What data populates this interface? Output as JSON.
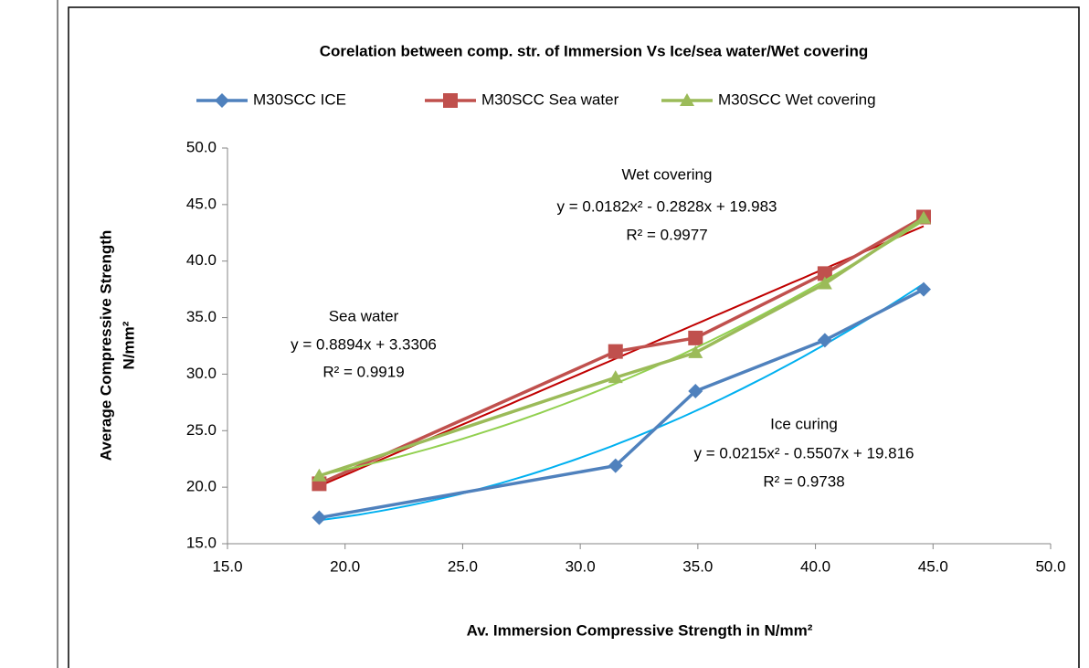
{
  "chart_data": {
    "type": "line",
    "title": "Corelation between comp. str. of Immersion Vs Ice/sea water/Wet covering",
    "x_label": "Av. Immersion Compressive Strength in N/mm²",
    "y_label": [
      "Average Compressive Strength",
      "N/mm²"
    ],
    "xlim": [
      15,
      50
    ],
    "ylim": [
      15,
      50
    ],
    "xticks": [
      {
        "value": 15,
        "label": "15.0"
      },
      {
        "value": 20,
        "label": "20.0"
      },
      {
        "value": 25,
        "label": "25.0"
      },
      {
        "value": 30,
        "label": "30.0"
      },
      {
        "value": 35,
        "label": "35.0"
      },
      {
        "value": 40,
        "label": "40.0"
      },
      {
        "value": 45,
        "label": "45.0"
      },
      {
        "value": 50,
        "label": "50.0"
      }
    ],
    "yticks": [
      {
        "value": 15,
        "label": "15.0"
      },
      {
        "value": 20,
        "label": "20.0"
      },
      {
        "value": 25,
        "label": "25.0"
      },
      {
        "value": 30,
        "label": "30.0"
      },
      {
        "value": 35,
        "label": "35.0"
      },
      {
        "value": 40,
        "label": "40.0"
      },
      {
        "value": 45,
        "label": "45.0"
      },
      {
        "value": 50,
        "label": "50.0"
      }
    ],
    "grid": false,
    "legend": "top",
    "series": [
      {
        "name": "M30SCC ICE",
        "color": "#4f81bd",
        "marker": "diamond",
        "trend_color": "#00b0f0",
        "trend_order": 2,
        "x": [
          18.9,
          31.5,
          34.9,
          40.4,
          44.6
        ],
        "values": [
          17.3,
          21.9,
          28.5,
          33.0,
          37.5
        ]
      },
      {
        "name": "M30SCC Sea water",
        "color": "#c0504d",
        "marker": "square",
        "trend_color": "#c00000",
        "trend_order": 1,
        "x": [
          18.9,
          31.5,
          34.9,
          40.4,
          44.6
        ],
        "values": [
          20.3,
          32.0,
          33.2,
          38.9,
          43.9
        ]
      },
      {
        "name": "M30SCC Wet covering",
        "color": "#9bbb59",
        "marker": "triangle",
        "trend_color": "#92d050",
        "trend_order": 2,
        "x": [
          18.9,
          31.5,
          34.9,
          40.4,
          44.6
        ],
        "values": [
          21.0,
          29.7,
          31.9,
          38.0,
          43.8
        ]
      }
    ],
    "annotations": [
      [
        "Wet covering",
        "y = 0.0182x² - 0.2828x + 19.983",
        "R² = 0.9977"
      ],
      [
        "Sea water",
        "y = 0.8894x + 3.3306",
        "R² = 0.9919"
      ],
      [
        "Ice curing",
        "y = 0.0215x² - 0.5507x + 19.816",
        "R² = 0.9738"
      ]
    ]
  }
}
